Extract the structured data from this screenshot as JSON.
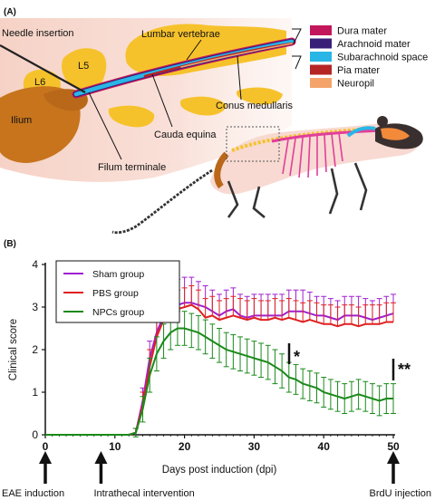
{
  "panel_a": {
    "label": "(A)",
    "labels": {
      "needle": "Needle insertion",
      "lumbar": "Lumbar vertebrae",
      "l5": "L5",
      "l6": "L6",
      "ilium": "Ilium",
      "conus": "Conus medullaris",
      "cauda": "Cauda equina",
      "filum": "Filum terminale"
    },
    "legend": [
      {
        "label": "Dura mater",
        "color": "#c2185b"
      },
      {
        "label": "Arachnoid mater",
        "color": "#3a1f78"
      },
      {
        "label": "Subarachnoid space",
        "color": "#29b6e6"
      },
      {
        "label": "Pia mater",
        "color": "#b52525"
      },
      {
        "label": "Neuropil",
        "color": "#f4a46a"
      }
    ]
  },
  "panel_b": {
    "label": "(B)",
    "significance": [
      "*",
      "**"
    ],
    "events": [
      {
        "label": "EAE induction",
        "day": 0
      },
      {
        "label": "Intrathecal intervention",
        "day": 8
      },
      {
        "label": "BrdU injection",
        "day": 50
      }
    ]
  },
  "chart_data": {
    "type": "line",
    "xlabel": "Days post induction (dpi)",
    "ylabel": "Clinical score",
    "xlim": [
      0,
      50
    ],
    "ylim": [
      0,
      4
    ],
    "xticks": [
      0,
      10,
      20,
      30,
      40,
      50
    ],
    "yticks": [
      0,
      1,
      2,
      3,
      4
    ],
    "legend_position": "top-left",
    "grid": false,
    "x": [
      0,
      1,
      2,
      3,
      4,
      5,
      6,
      7,
      8,
      9,
      10,
      11,
      12,
      13,
      14,
      15,
      16,
      17,
      18,
      19,
      20,
      21,
      22,
      23,
      24,
      25,
      26,
      27,
      28,
      29,
      30,
      31,
      32,
      33,
      34,
      35,
      36,
      37,
      38,
      39,
      40,
      41,
      42,
      43,
      44,
      45,
      46,
      47,
      48,
      49,
      50
    ],
    "series": [
      {
        "name": "Sham group",
        "color": "#a020d0",
        "values": [
          0,
          0,
          0,
          0,
          0,
          0,
          0,
          0,
          0,
          0,
          0,
          0,
          0,
          0.05,
          0.8,
          1.8,
          2.4,
          2.8,
          3.0,
          3.05,
          3.1,
          3.1,
          3.05,
          3.0,
          2.9,
          2.8,
          2.9,
          2.95,
          2.8,
          2.75,
          2.8,
          2.8,
          2.8,
          2.8,
          2.8,
          2.9,
          2.9,
          2.9,
          2.85,
          2.8,
          2.8,
          2.75,
          2.7,
          2.8,
          2.8,
          2.8,
          2.75,
          2.7,
          2.75,
          2.8,
          2.85
        ],
        "err": [
          0,
          0,
          0,
          0,
          0,
          0,
          0,
          0,
          0,
          0,
          0,
          0,
          0,
          0.1,
          0.3,
          0.4,
          0.5,
          0.5,
          0.55,
          0.6,
          0.6,
          0.6,
          0.55,
          0.5,
          0.5,
          0.5,
          0.5,
          0.5,
          0.5,
          0.5,
          0.5,
          0.5,
          0.5,
          0.5,
          0.5,
          0.5,
          0.5,
          0.5,
          0.5,
          0.45,
          0.45,
          0.45,
          0.45,
          0.45,
          0.45,
          0.45,
          0.45,
          0.45,
          0.45,
          0.45,
          0.45
        ]
      },
      {
        "name": "PBS group",
        "color": "#e02020",
        "values": [
          0,
          0,
          0,
          0,
          0,
          0,
          0,
          0,
          0,
          0,
          0,
          0,
          0,
          0.05,
          0.7,
          1.6,
          2.3,
          2.7,
          2.85,
          2.95,
          3.0,
          3.05,
          2.95,
          2.75,
          2.8,
          2.7,
          2.75,
          2.8,
          2.75,
          2.7,
          2.75,
          2.7,
          2.7,
          2.75,
          2.7,
          2.75,
          2.7,
          2.65,
          2.7,
          2.65,
          2.6,
          2.6,
          2.55,
          2.6,
          2.6,
          2.55,
          2.6,
          2.6,
          2.6,
          2.65,
          2.65
        ],
        "err": [
          0,
          0,
          0,
          0,
          0,
          0,
          0,
          0,
          0,
          0,
          0,
          0,
          0,
          0.1,
          0.3,
          0.4,
          0.4,
          0.45,
          0.45,
          0.45,
          0.45,
          0.45,
          0.45,
          0.45,
          0.45,
          0.45,
          0.45,
          0.45,
          0.45,
          0.45,
          0.45,
          0.45,
          0.45,
          0.45,
          0.45,
          0.45,
          0.45,
          0.45,
          0.45,
          0.45,
          0.45,
          0.45,
          0.45,
          0.45,
          0.45,
          0.45,
          0.45,
          0.45,
          0.45,
          0.45,
          0.45
        ]
      },
      {
        "name": "NPCs group",
        "color": "#1a8a1a",
        "values": [
          0,
          0,
          0,
          0,
          0,
          0,
          0,
          0,
          0,
          0,
          0,
          0,
          0,
          0.05,
          0.6,
          1.4,
          1.9,
          2.2,
          2.4,
          2.5,
          2.5,
          2.45,
          2.4,
          2.3,
          2.2,
          2.1,
          2.0,
          1.95,
          1.9,
          1.85,
          1.8,
          1.75,
          1.7,
          1.6,
          1.5,
          1.35,
          1.3,
          1.2,
          1.15,
          1.1,
          1.0,
          0.95,
          0.9,
          0.85,
          0.9,
          0.95,
          0.9,
          0.85,
          0.8,
          0.85,
          0.85
        ],
        "err": [
          0,
          0,
          0,
          0,
          0,
          0,
          0,
          0,
          0,
          0,
          0,
          0,
          0,
          0.1,
          0.3,
          0.4,
          0.4,
          0.4,
          0.4,
          0.4,
          0.4,
          0.4,
          0.4,
          0.4,
          0.4,
          0.4,
          0.4,
          0.4,
          0.4,
          0.4,
          0.4,
          0.4,
          0.4,
          0.4,
          0.4,
          0.35,
          0.35,
          0.35,
          0.35,
          0.35,
          0.35,
          0.35,
          0.35,
          0.35,
          0.35,
          0.35,
          0.35,
          0.35,
          0.35,
          0.35,
          0.35
        ]
      }
    ]
  }
}
